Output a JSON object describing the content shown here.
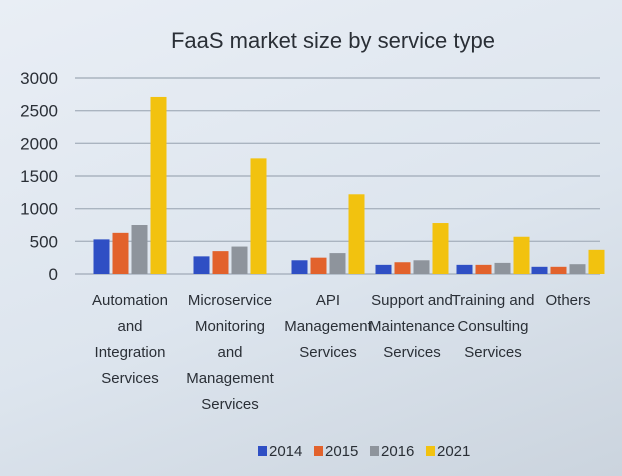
{
  "chart_data": {
    "type": "bar",
    "title": "FaaS market size by service type",
    "xlabel": "",
    "ylabel": "",
    "ylim": [
      0,
      3000
    ],
    "yticks": [
      0,
      500,
      1000,
      1500,
      2000,
      2500,
      3000
    ],
    "grid": true,
    "legend_position": "bottom",
    "categories": [
      "Automation and Integration Services",
      "Microservice Monitoring and Management Services",
      "API Management Services",
      "Support and Maintenance Services",
      "Training and Consulting Services",
      "Others"
    ],
    "category_lines": [
      [
        "Automation",
        "and",
        "Integration",
        "Services"
      ],
      [
        "Microservice",
        "Monitoring",
        "and",
        "Management",
        "Services"
      ],
      [
        "API",
        "Management",
        "Services"
      ],
      [
        "Support and",
        "Maintenance",
        "Services"
      ],
      [
        "Training and",
        "Consulting",
        "Services"
      ],
      [
        "Others"
      ]
    ],
    "series": [
      {
        "name": "2014",
        "color": "#2f4fc4",
        "values": [
          530,
          270,
          210,
          140,
          140,
          110
        ]
      },
      {
        "name": "2015",
        "color": "#e2622c",
        "values": [
          630,
          350,
          250,
          180,
          140,
          110
        ]
      },
      {
        "name": "2016",
        "color": "#8e949c",
        "values": [
          750,
          420,
          320,
          210,
          170,
          150
        ]
      },
      {
        "name": "2021",
        "color": "#f2c20f",
        "values": [
          2710,
          1770,
          1220,
          780,
          570,
          370
        ]
      }
    ]
  }
}
